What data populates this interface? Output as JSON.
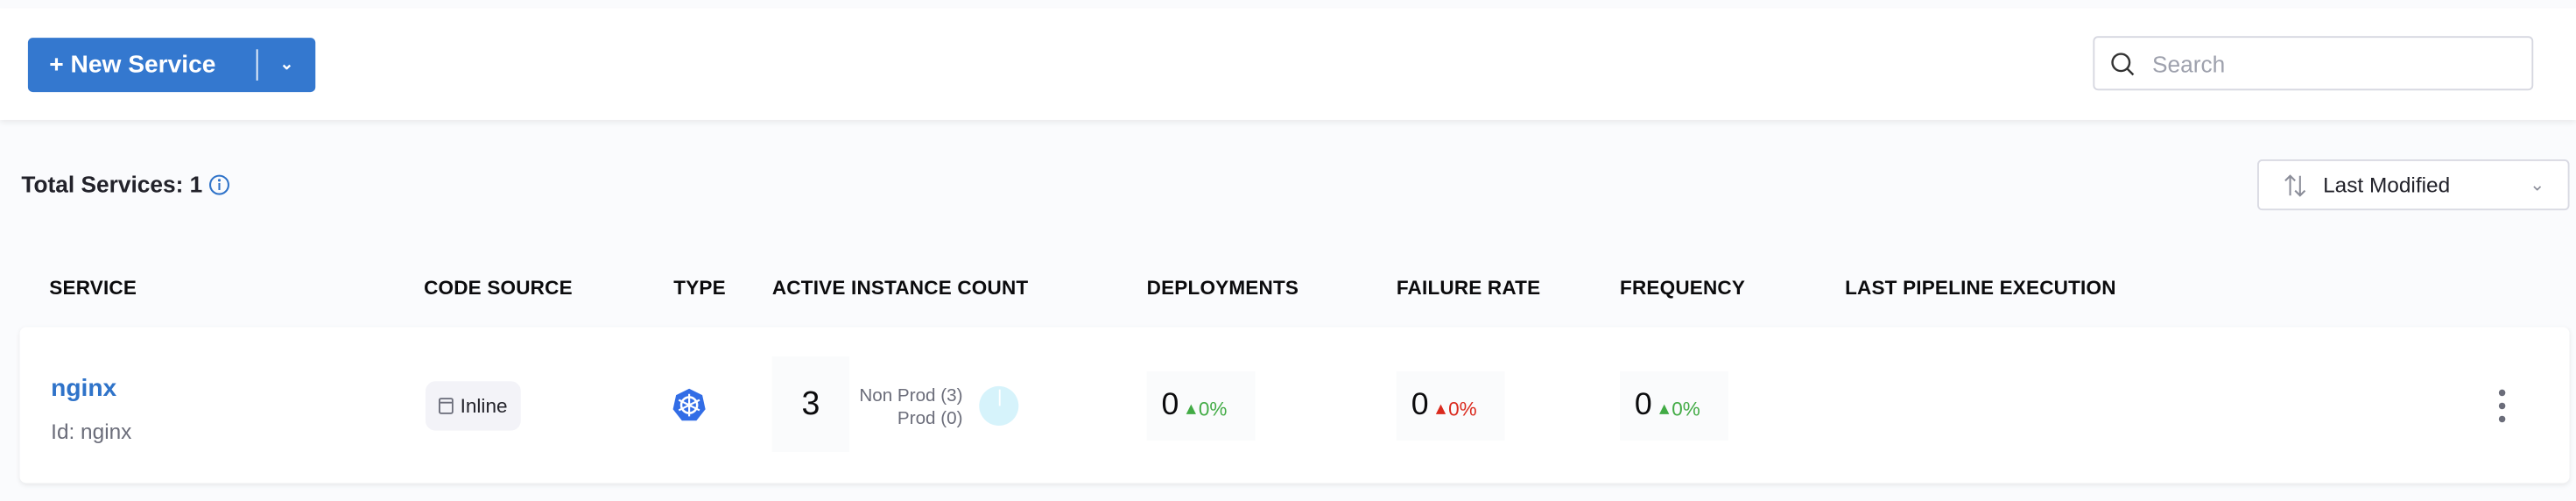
{
  "toolbar": {
    "new_service_label": "+ New Service",
    "search_placeholder": "Search"
  },
  "summary": {
    "total_label": "Total Services: 1"
  },
  "sort": {
    "selected": "Last Modified"
  },
  "table": {
    "columns": [
      "SERVICE",
      "CODE SOURCE",
      "TYPE",
      "ACTIVE INSTANCE COUNT",
      "DEPLOYMENTS",
      "FAILURE RATE",
      "FREQUENCY",
      "LAST PIPELINE EXECUTION"
    ],
    "rows": [
      {
        "name": "nginx",
        "id_label": "Id: nginx",
        "code_source": "Inline",
        "type_icon": "kubernetes-icon",
        "active_instances": "3",
        "non_prod": "Non Prod (3)",
        "prod": "Prod (0)",
        "deployments": {
          "value": "0",
          "change": "0%",
          "color": "#42ab45"
        },
        "failure_rate": {
          "value": "0",
          "change": "0%",
          "color": "#da291d"
        },
        "frequency": {
          "value": "0",
          "change": "0%",
          "color": "#42ab45"
        }
      }
    ]
  },
  "colors": {
    "primary": "#3478cf",
    "link": "#2f73c9",
    "k8s": "#326de6"
  }
}
